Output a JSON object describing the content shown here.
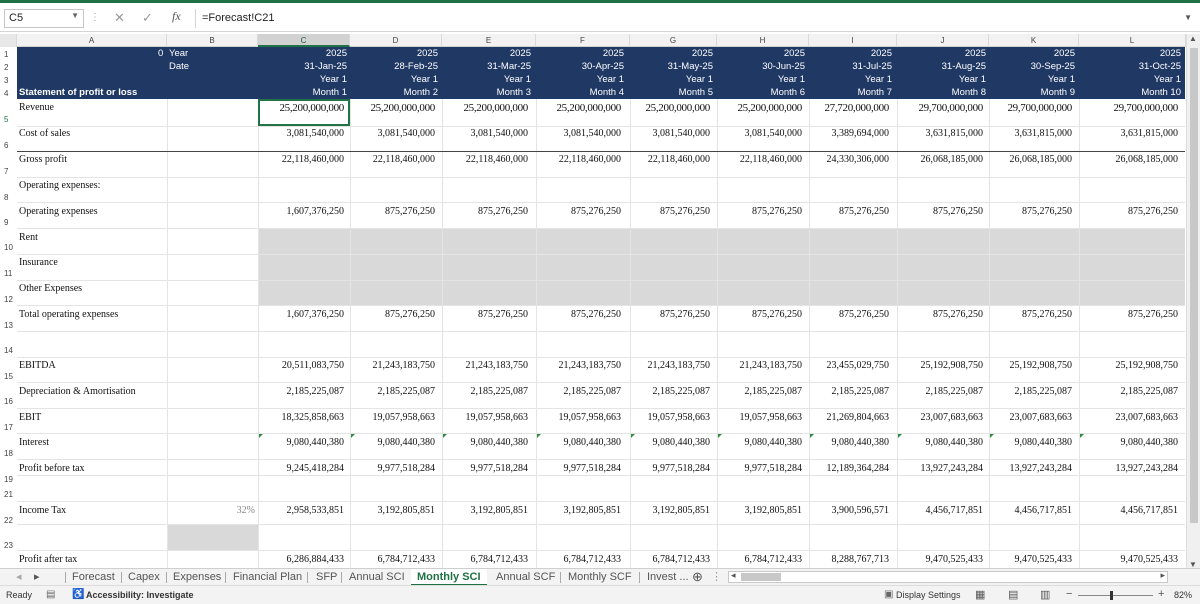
{
  "formula_bar": {
    "name_box": "C5",
    "formula": "=Forecast!C21"
  },
  "columns": [
    "A",
    "B",
    "C",
    "D",
    "E",
    "F",
    "G",
    "H",
    "I",
    "J",
    "K",
    "L"
  ],
  "row_numbers": [
    "1",
    "2",
    "3",
    "4",
    "5",
    "6",
    "7",
    "8",
    "9",
    "10",
    "11",
    "12",
    "13",
    "14",
    "15",
    "16",
    "17",
    "18",
    "19",
    "21",
    "22",
    "23"
  ],
  "header": {
    "a1": "0",
    "b1": "Year",
    "b2": "Date",
    "a4": "Statement of profit or loss",
    "periods": [
      {
        "year": "2025",
        "date": "31-Jan-25",
        "fy": "Year 1",
        "month": "Month 1"
      },
      {
        "year": "2025",
        "date": "28-Feb-25",
        "fy": "Year 1",
        "month": "Month 2"
      },
      {
        "year": "2025",
        "date": "31-Mar-25",
        "fy": "Year 1",
        "month": "Month 3"
      },
      {
        "year": "2025",
        "date": "30-Apr-25",
        "fy": "Year 1",
        "month": "Month 4"
      },
      {
        "year": "2025",
        "date": "31-May-25",
        "fy": "Year 1",
        "month": "Month 5"
      },
      {
        "year": "2025",
        "date": "30-Jun-25",
        "fy": "Year 1",
        "month": "Month 6"
      },
      {
        "year": "2025",
        "date": "31-Jul-25",
        "fy": "Year 1",
        "month": "Month 7"
      },
      {
        "year": "2025",
        "date": "31-Aug-25",
        "fy": "Year 1",
        "month": "Month 8"
      },
      {
        "year": "2025",
        "date": "30-Sep-25",
        "fy": "Year 1",
        "month": "Month 9"
      },
      {
        "year": "2025",
        "date": "31-Oct-25",
        "fy": "Year 1",
        "month": "Month 10"
      }
    ]
  },
  "rows": [
    {
      "label": "Revenue",
      "values": [
        "25,200,000,000",
        "25,200,000,000",
        "25,200,000,000",
        "25,200,000,000",
        "25,200,000,000",
        "25,200,000,000",
        "27,720,000,000",
        "29,700,000,000",
        "29,700,000,000",
        "29,700,000,000"
      ]
    },
    {
      "label": "Cost of sales",
      "values": [
        "3,081,540,000",
        "3,081,540,000",
        "3,081,540,000",
        "3,081,540,000",
        "3,081,540,000",
        "3,081,540,000",
        "3,389,694,000",
        "3,631,815,000",
        "3,631,815,000",
        "3,631,815,000"
      ]
    },
    {
      "label": "Gross profit",
      "values": [
        "22,118,460,000",
        "22,118,460,000",
        "22,118,460,000",
        "22,118,460,000",
        "22,118,460,000",
        "22,118,460,000",
        "24,330,306,000",
        "26,068,185,000",
        "26,068,185,000",
        "26,068,185,000"
      ]
    },
    {
      "label": "Operating expenses:",
      "values": []
    },
    {
      "label": "Operating expenses",
      "values": [
        "1,607,376,250",
        "875,276,250",
        "875,276,250",
        "875,276,250",
        "875,276,250",
        "875,276,250",
        "875,276,250",
        "875,276,250",
        "875,276,250",
        "875,276,250"
      ]
    },
    {
      "label": "Rent",
      "values": []
    },
    {
      "label": "Insurance",
      "values": []
    },
    {
      "label": "Other Expenses",
      "values": []
    },
    {
      "label": "Total operating expenses",
      "values": [
        "1,607,376,250",
        "875,276,250",
        "875,276,250",
        "875,276,250",
        "875,276,250",
        "875,276,250",
        "875,276,250",
        "875,276,250",
        "875,276,250",
        "875,276,250"
      ]
    },
    {
      "label": "EBITDA",
      "values": [
        "20,511,083,750",
        "21,243,183,750",
        "21,243,183,750",
        "21,243,183,750",
        "21,243,183,750",
        "21,243,183,750",
        "23,455,029,750",
        "25,192,908,750",
        "25,192,908,750",
        "25,192,908,750"
      ]
    },
    {
      "label": "Depreciation & Amortisation",
      "values": [
        "2,185,225,087",
        "2,185,225,087",
        "2,185,225,087",
        "2,185,225,087",
        "2,185,225,087",
        "2,185,225,087",
        "2,185,225,087",
        "2,185,225,087",
        "2,185,225,087",
        "2,185,225,087"
      ]
    },
    {
      "label": "EBIT",
      "values": [
        "18,325,858,663",
        "19,057,958,663",
        "19,057,958,663",
        "19,057,958,663",
        "19,057,958,663",
        "19,057,958,663",
        "21,269,804,663",
        "23,007,683,663",
        "23,007,683,663",
        "23,007,683,663"
      ]
    },
    {
      "label": "Interest",
      "values": [
        "9,080,440,380",
        "9,080,440,380",
        "9,080,440,380",
        "9,080,440,380",
        "9,080,440,380",
        "9,080,440,380",
        "9,080,440,380",
        "9,080,440,380",
        "9,080,440,380",
        "9,080,440,380"
      ]
    },
    {
      "label": "Profit before tax",
      "values": [
        "9,245,418,284",
        "9,977,518,284",
        "9,977,518,284",
        "9,977,518,284",
        "9,977,518,284",
        "9,977,518,284",
        "12,189,364,284",
        "13,927,243,284",
        "13,927,243,284",
        "13,927,243,284"
      ]
    },
    {
      "label": "Income Tax",
      "rate": "32%",
      "values": [
        "2,958,533,851",
        "3,192,805,851",
        "3,192,805,851",
        "3,192,805,851",
        "3,192,805,851",
        "3,192,805,851",
        "3,900,596,571",
        "4,456,717,851",
        "4,456,717,851",
        "4,456,717,851"
      ]
    },
    {
      "label": "Profit after tax",
      "values": [
        "6,286,884,433",
        "6,784,712,433",
        "6,784,712,433",
        "6,784,712,433",
        "6,784,712,433",
        "6,784,712,433",
        "8,288,767,713",
        "9,470,525,433",
        "9,470,525,433",
        "9,470,525,433"
      ]
    }
  ],
  "sheet_tabs": [
    "Forecast",
    "Capex",
    "Expenses",
    "Financial Plan",
    "SFP",
    "Annual SCI",
    "Monthly SCI",
    "Annual SCF",
    "Monthly SCF",
    "Invest ..."
  ],
  "active_tab": "Monthly SCI",
  "status": {
    "ready": "Ready",
    "accessibility": "Accessibility: Investigate",
    "display_settings": "Display Settings",
    "zoom": "82%"
  }
}
